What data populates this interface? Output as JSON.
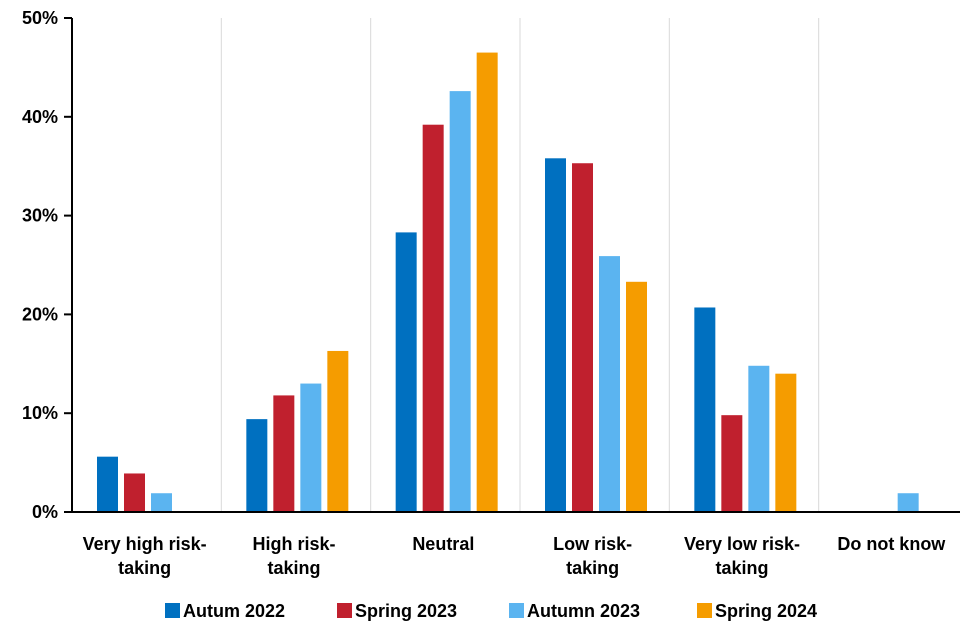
{
  "chart_data": {
    "type": "bar",
    "categories": [
      [
        "Very high risk-",
        "taking"
      ],
      [
        "High risk-",
        "taking"
      ],
      [
        "Neutral"
      ],
      [
        "Low risk-",
        "taking"
      ],
      [
        "Very low risk-",
        "taking"
      ],
      [
        "Do not know"
      ]
    ],
    "series": [
      {
        "name": "Autum 2022",
        "color": "#0070C0",
        "values": [
          5.6,
          9.4,
          28.3,
          35.8,
          20.7,
          null
        ]
      },
      {
        "name": "Spring 2023",
        "color": "#C0202E",
        "values": [
          3.9,
          11.8,
          39.2,
          35.3,
          9.8,
          null
        ]
      },
      {
        "name": "Autumn 2023",
        "color": "#5BB4F0",
        "values": [
          1.9,
          13.0,
          42.6,
          25.9,
          14.8,
          1.9
        ]
      },
      {
        "name": "Spring 2024",
        "color": "#F59C00",
        "values": [
          null,
          16.3,
          46.5,
          23.3,
          14.0,
          null
        ]
      }
    ],
    "yticks": [
      "0%",
      "10%",
      "20%",
      "30%",
      "40%",
      "50%"
    ],
    "ylim": [
      0,
      50
    ],
    "grid": "vertical separators between categories",
    "legend": "bottom"
  }
}
